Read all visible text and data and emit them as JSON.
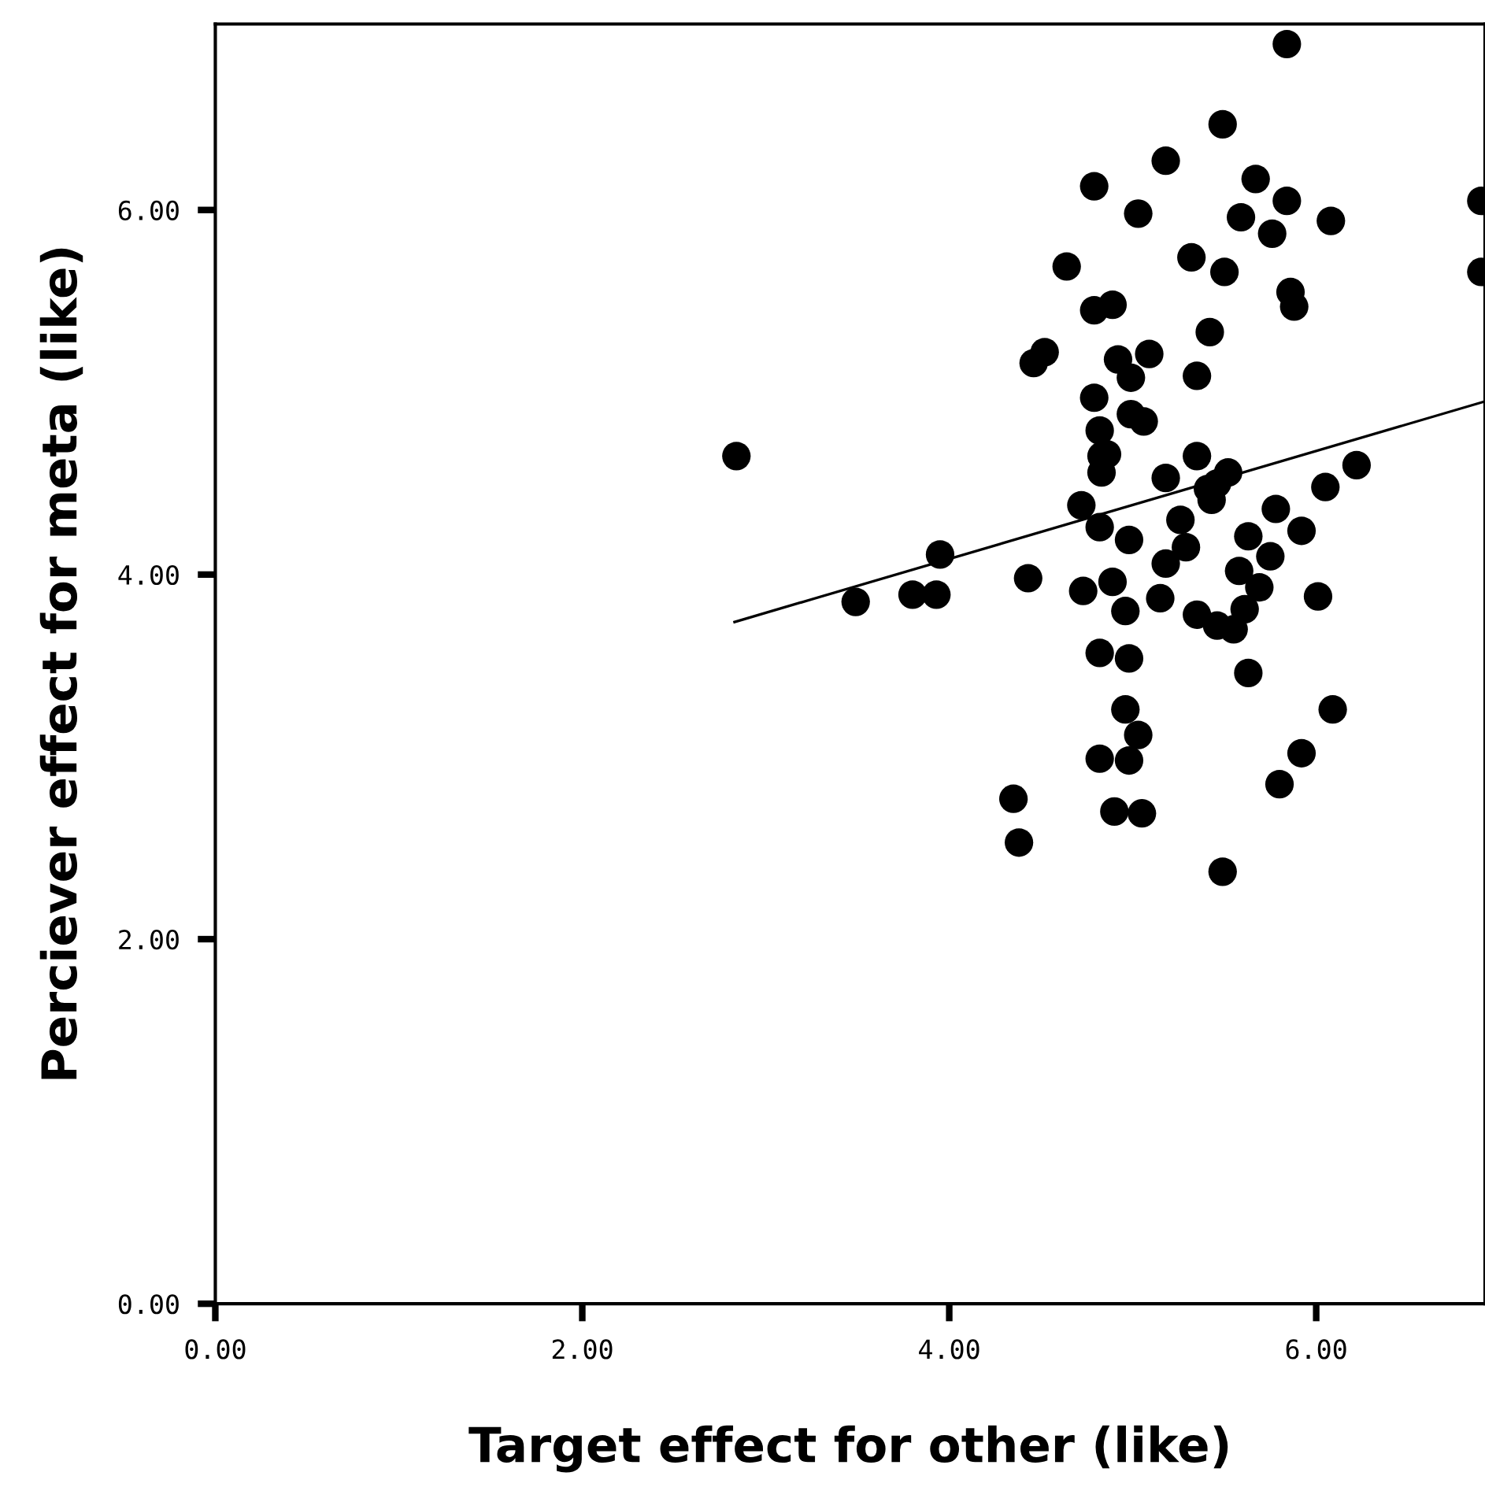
{
  "chart_data": {
    "type": "scatter",
    "xlabel": "Target effect for other (like)",
    "ylabel": "Perciever effect for meta (like)",
    "xlim": [
      0,
      6.92
    ],
    "ylim": [
      0,
      7.02
    ],
    "xticks": [
      {
        "value": 0,
        "label": "0.00"
      },
      {
        "value": 2,
        "label": "2.00"
      },
      {
        "value": 4,
        "label": "4.00"
      },
      {
        "value": 6,
        "label": "6.00"
      }
    ],
    "yticks": [
      {
        "value": 0,
        "label": "0.00"
      },
      {
        "value": 2,
        "label": "2.00"
      },
      {
        "value": 4,
        "label": "4.00"
      },
      {
        "value": 6,
        "label": "6.00"
      }
    ],
    "grid": false,
    "legend": false,
    "series": [
      {
        "marker": "circle",
        "color": "#000000",
        "x": [
          2.84,
          3.49,
          3.8,
          3.93,
          3.95,
          4.43,
          4.35,
          4.38,
          4.72,
          4.82,
          4.98,
          4.73,
          4.89,
          4.96,
          4.82,
          4.98,
          4.96,
          5.03,
          4.82,
          4.98,
          4.9,
          5.05,
          5.49,
          5.63,
          6.09,
          5.92,
          5.8,
          6.01,
          5.92,
          5.78,
          6.05,
          6.22,
          5.15,
          5.18,
          5.29,
          5.26,
          5.18,
          5.35,
          5.46,
          5.43,
          5.35,
          5.46,
          5.55,
          5.61,
          5.63,
          5.75,
          5.58,
          5.69,
          4.83,
          4.83,
          5.41,
          5.52,
          5.84,
          5.49,
          5.18,
          4.79,
          5.03,
          5.67,
          5.84,
          5.59,
          5.76,
          6.08,
          6.9,
          6.9,
          4.64,
          5.32,
          5.5,
          5.86,
          5.88,
          4.79,
          4.89,
          5.42,
          4.46,
          4.52,
          4.92,
          5.09,
          4.99,
          5.35,
          4.79,
          5.06,
          4.99,
          4.82,
          4.86
        ],
        "values": [
          4.65,
          3.85,
          3.89,
          3.89,
          4.11,
          3.98,
          2.77,
          2.53,
          4.38,
          4.26,
          4.19,
          3.91,
          3.96,
          3.8,
          3.57,
          3.54,
          3.26,
          3.12,
          2.99,
          2.98,
          2.7,
          2.69,
          2.37,
          3.46,
          3.26,
          3.02,
          2.85,
          3.88,
          4.24,
          4.36,
          4.48,
          4.6,
          3.87,
          4.06,
          4.15,
          4.3,
          4.53,
          4.65,
          4.5,
          4.41,
          3.78,
          3.72,
          3.7,
          3.81,
          4.21,
          4.1,
          4.02,
          3.93,
          4.65,
          4.56,
          4.47,
          4.56,
          6.91,
          6.47,
          6.27,
          6.13,
          5.98,
          6.17,
          6.05,
          5.96,
          5.87,
          5.94,
          6.05,
          5.66,
          5.69,
          5.74,
          5.66,
          5.55,
          5.47,
          5.45,
          5.48,
          5.33,
          5.16,
          5.22,
          5.18,
          5.21,
          5.08,
          5.09,
          4.97,
          4.84,
          4.88,
          4.79,
          4.66
        ]
      },
      {
        "type": "line",
        "marker": "none",
        "color": "#000000",
        "x": [
          2.83,
          6.92
        ],
        "values": [
          3.74,
          4.95
        ]
      }
    ]
  }
}
